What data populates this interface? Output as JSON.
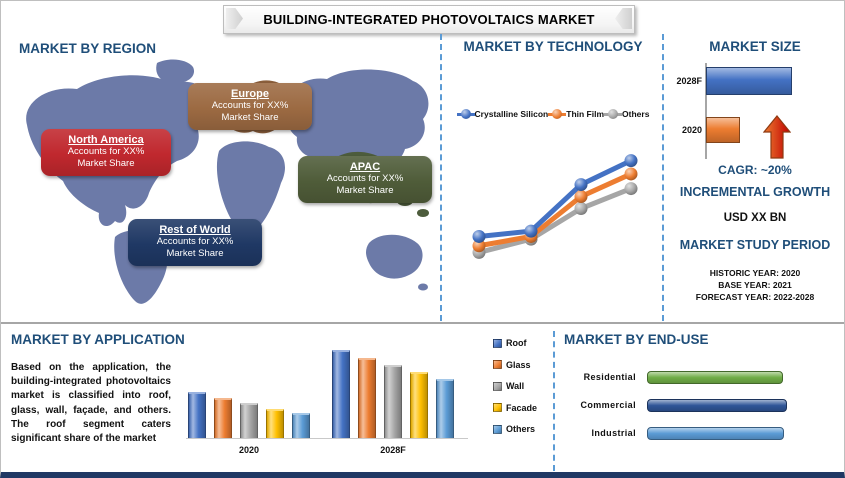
{
  "title": "BUILDING-INTEGRATED PHOTOVOLTAICS MARKET",
  "colors": {
    "heading_blue": "#1F4E79",
    "divider_dashed_blue": "#5B9BD5",
    "divider_gray": "#A6A6A6",
    "page_bottom_border": "#203864"
  },
  "region_section": {
    "heading": "MARKET BY REGION",
    "map_colors": {
      "base": "#6C7AA8",
      "europe_patch": "#8B5E3B",
      "apac_patch": "#4D5C3C"
    },
    "callouts": [
      {
        "key": "na",
        "name": "North America",
        "line1": "Accounts for XX%",
        "line2": "Market Share",
        "color": "#C0282E"
      },
      {
        "key": "eu",
        "name": "Europe",
        "line1": "Accounts for XX%",
        "line2": "Market Share",
        "color": "#9C6A42"
      },
      {
        "key": "apac",
        "name": "APAC",
        "line1": "Accounts for XX%",
        "line2": "Market Share",
        "color": "#4F5C39"
      },
      {
        "key": "row",
        "name": "Rest of World",
        "line1": "Accounts for XX%",
        "line2": "Market Share",
        "color": "#1F3864"
      }
    ]
  },
  "technology_section": {
    "heading": "MARKET BY TECHNOLOGY"
  },
  "market_size_section": {
    "heading": "MARKET SIZE",
    "cagr_label": "CAGR:  ~20%",
    "incremental_heading": "INCREMENTAL GROWTH",
    "incremental_value": "USD XX BN",
    "study_heading": "MARKET STUDY PERIOD",
    "study_lines": [
      "HISTORIC YEAR: 2020",
      "BASE YEAR: 2021",
      "FORECAST YEAR: 2022-2028"
    ]
  },
  "application_section": {
    "heading": "MARKET BY APPLICATION",
    "description": "Based on the application, the building-integrated photovoltaics market is classified into roof, glass, wall, façade, and others. The roof segment caters significant share of the market"
  },
  "enduse_section": {
    "heading": "MARKET BY END-USE"
  },
  "chart_data": [
    {
      "id": "technology_line",
      "type": "line",
      "title": "MARKET BY TECHNOLOGY",
      "x": [
        1,
        2,
        3,
        4
      ],
      "x_note": "four unlabeled time points, axes not shown",
      "ylim": [
        0,
        100
      ],
      "legend_position": "top",
      "series": [
        {
          "name": "Crystalline Silicon",
          "color": "#4472C4",
          "values": [
            38,
            42,
            77,
            95
          ]
        },
        {
          "name": "Thin Film",
          "color": "#ED7D31",
          "values": [
            31,
            38,
            68,
            85
          ]
        },
        {
          "name": "Others",
          "color": "#A6A6A6",
          "values": [
            26,
            36,
            59,
            74
          ]
        }
      ]
    },
    {
      "id": "market_size_bars",
      "type": "bar",
      "title": "MARKET SIZE",
      "orientation": "horizontal",
      "categories": [
        "2028F",
        "2020"
      ],
      "values": [
        100,
        40
      ],
      "colors": [
        "#4472C4",
        "#ED7D31"
      ],
      "value_note": "relative size, actual values masked as XX"
    },
    {
      "id": "application_bars",
      "type": "bar",
      "title": "MARKET BY APPLICATION",
      "categories": [
        "2020",
        "2028F"
      ],
      "ylim": [
        0,
        100
      ],
      "legend_position": "right",
      "series": [
        {
          "name": "Roof",
          "color": "#4472C4",
          "values": [
            52,
            100
          ]
        },
        {
          "name": "Glass",
          "color": "#ED7D31",
          "values": [
            45,
            91
          ]
        },
        {
          "name": "Wall",
          "color": "#A5A5A5",
          "values": [
            40,
            83
          ]
        },
        {
          "name": "Facade",
          "color": "#FFC000",
          "values": [
            33,
            75
          ]
        },
        {
          "name": "Others",
          "color": "#5B9BD5",
          "values": [
            28,
            67
          ]
        }
      ]
    },
    {
      "id": "enduse_bars",
      "type": "bar",
      "title": "MARKET BY END-USE",
      "orientation": "horizontal",
      "categories": [
        "Residential",
        "Commercial",
        "Industrial"
      ],
      "values": [
        97,
        100,
        98
      ],
      "colors": [
        "#70AD47",
        "#2F5597",
        "#5B9BD5"
      ]
    }
  ]
}
